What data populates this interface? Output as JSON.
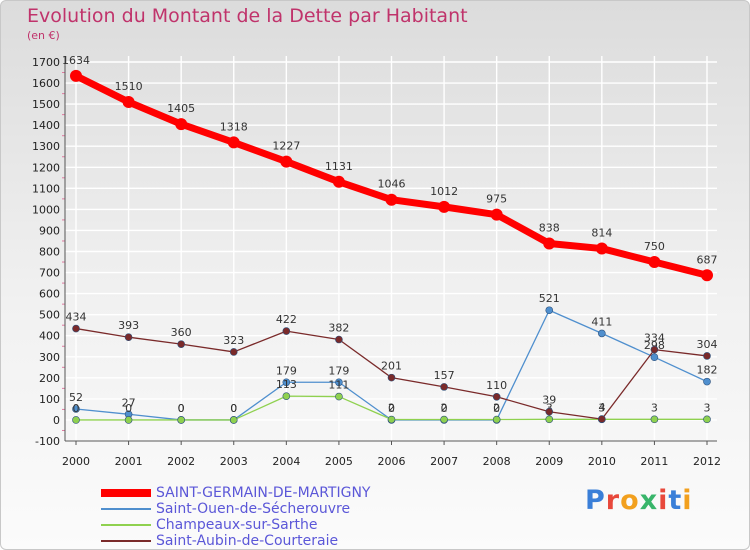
{
  "title": "Evolution du Montant de la Dette par Habitant",
  "unit_label": "(en €)",
  "logo": {
    "text": "Proxiti",
    "letter_colors": [
      "#3a7fd8",
      "#e8483b",
      "#f2a01e",
      "#38b56a",
      "#e8483b",
      "#3a7fd8",
      "#f2a01e"
    ]
  },
  "chart_data": {
    "type": "line",
    "x": [
      "2000",
      "2001",
      "2002",
      "2003",
      "2004",
      "2005",
      "2006",
      "2007",
      "2008",
      "2009",
      "2010",
      "2011",
      "2012"
    ],
    "ylim": [
      -100,
      1700
    ],
    "yticks": [
      "-100",
      "0",
      "100",
      "200",
      "300",
      "400",
      "500",
      "600",
      "700",
      "800",
      "900",
      "1000",
      "1100",
      "1200",
      "1300",
      "1400",
      "1500",
      "1600",
      "1700"
    ],
    "grid": true,
    "legend_position": "bottom-left",
    "series": [
      {
        "name": "SAINT-GERMAIN-DE-MARTIGNY",
        "color": "#ff0000",
        "values": [
          1634,
          1510,
          1405,
          1318,
          1227,
          1131,
          1046,
          1012,
          975,
          838,
          814,
          750,
          687
        ],
        "labels": [
          "1634",
          "1510",
          "1405",
          "1318",
          "1227",
          "1131",
          "1046",
          "1012",
          "975",
          "838",
          "814",
          "750",
          "687"
        ]
      },
      {
        "name": "Saint-Ouen-de-Sécherouvre",
        "color": "#4f8fce",
        "values": [
          52,
          27,
          0,
          0,
          179,
          179,
          0,
          0,
          0,
          521,
          411,
          298,
          182
        ],
        "labels": [
          "52",
          "27",
          "0",
          "0",
          "179",
          "179",
          "0",
          "0",
          "0",
          "521",
          "411",
          "298",
          "182"
        ]
      },
      {
        "name": "Champeaux-sur-Sarthe",
        "color": "#8fd14f",
        "values": [
          0,
          0,
          0,
          0,
          113,
          111,
          2,
          2,
          2,
          3,
          3,
          3,
          3
        ],
        "labels": [
          "0",
          "0",
          "0",
          "0",
          "113",
          "111",
          "2",
          "2",
          "2",
          "3",
          "3",
          "3",
          "3"
        ]
      },
      {
        "name": "Saint-Aubin-de-Courteraie",
        "color": "#7a2a2a",
        "values": [
          434,
          393,
          360,
          323,
          422,
          382,
          201,
          157,
          110,
          39,
          4,
          334,
          304
        ],
        "labels": [
          "434",
          "393",
          "360",
          "323",
          "422",
          "382",
          "201",
          "157",
          "110",
          "39",
          "4",
          "334",
          "304"
        ]
      }
    ]
  }
}
